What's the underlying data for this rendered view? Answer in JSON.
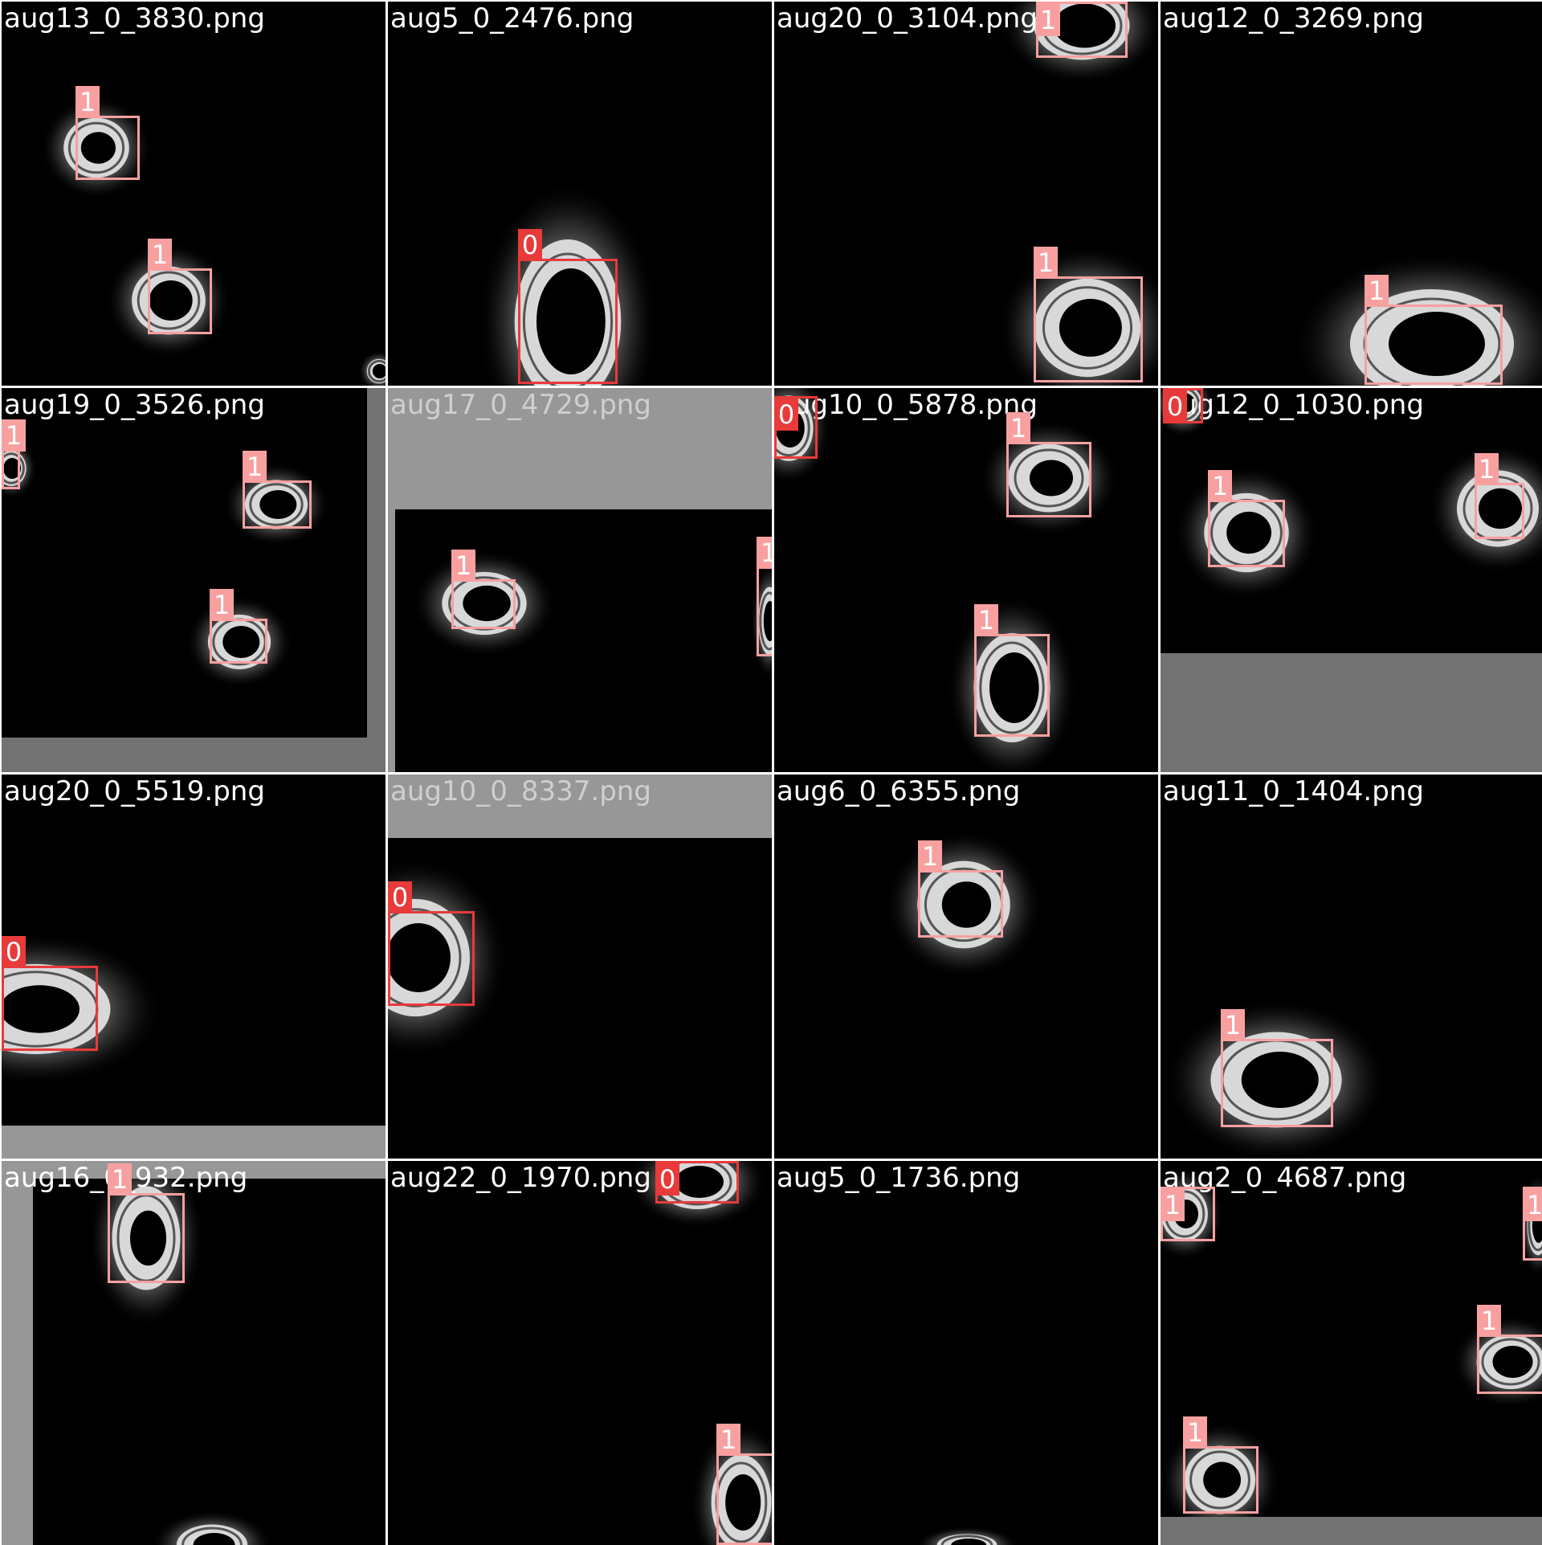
{
  "colors": {
    "class_1": "#f8a0a0",
    "class_0": "#e83a3a",
    "tile_background": "#000000",
    "pad_gray_dark": "#727272",
    "pad_gray_light": "#979797"
  },
  "tiles": [
    {
      "filename": "aug13_0_3830.png",
      "labels": [
        "1",
        "1"
      ]
    },
    {
      "filename": "aug5_0_2476.png",
      "labels": [
        "0"
      ]
    },
    {
      "filename": "aug20_0_3104.png",
      "labels": [
        "1",
        "1"
      ]
    },
    {
      "filename": "aug12_0_3269.png",
      "labels": [
        "1"
      ]
    },
    {
      "filename": "aug19_0_3526.png",
      "labels": [
        "1",
        "1",
        "1"
      ]
    },
    {
      "filename": "aug17_0_4729.png",
      "labels": [
        "1",
        "1"
      ]
    },
    {
      "filename": "aug10_0_5878.png",
      "labels": [
        "0",
        "1",
        "1"
      ]
    },
    {
      "filename": "aug12_0_1030.png",
      "labels": [
        "0",
        "1",
        "1"
      ]
    },
    {
      "filename": "aug20_0_5519.png",
      "labels": [
        "0"
      ]
    },
    {
      "filename": "aug10_0_8337.png",
      "labels": [
        "0"
      ]
    },
    {
      "filename": "aug6_0_6355.png",
      "labels": [
        "1"
      ]
    },
    {
      "filename": "aug11_0_1404.png",
      "labels": [
        "1"
      ]
    },
    {
      "filename": "aug16_0_932.png",
      "labels": [
        "1"
      ]
    },
    {
      "filename": "aug22_0_1970.png",
      "labels": [
        "0",
        "1"
      ]
    },
    {
      "filename": "aug5_0_1736.png",
      "labels": []
    },
    {
      "filename": "aug2_0_4687.png",
      "labels": [
        "1",
        "1",
        "1",
        "1"
      ]
    }
  ]
}
